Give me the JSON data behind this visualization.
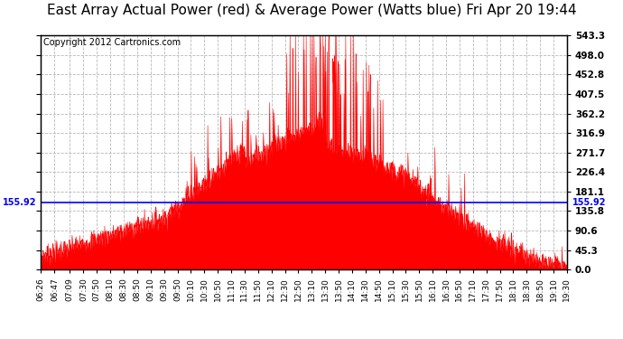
{
  "title": "East Array Actual Power (red) & Average Power (Watts blue) Fri Apr 20 19:44",
  "copyright": "Copyright 2012 Cartronics.com",
  "avg_power": 155.92,
  "y_max": 543.3,
  "y_min": 0.0,
  "y_ticks": [
    0.0,
    45.3,
    90.6,
    135.8,
    181.1,
    226.4,
    271.7,
    316.9,
    362.2,
    407.5,
    452.8,
    498.0,
    543.3
  ],
  "fill_color": "red",
  "line_color": "blue",
  "background_color": "#ffffff",
  "grid_color": "#b0b0b0",
  "title_fontsize": 11,
  "copyright_fontsize": 7,
  "time_labels": [
    "06:26",
    "06:47",
    "07:09",
    "07:30",
    "07:50",
    "08:10",
    "08:30",
    "08:50",
    "09:10",
    "09:30",
    "09:50",
    "10:10",
    "10:30",
    "10:50",
    "11:10",
    "11:30",
    "11:50",
    "12:10",
    "12:30",
    "12:50",
    "13:10",
    "13:30",
    "13:50",
    "14:10",
    "14:30",
    "14:50",
    "15:10",
    "15:30",
    "15:50",
    "16:10",
    "16:30",
    "16:50",
    "17:10",
    "17:30",
    "17:50",
    "18:10",
    "18:30",
    "18:50",
    "19:10",
    "19:30"
  ]
}
